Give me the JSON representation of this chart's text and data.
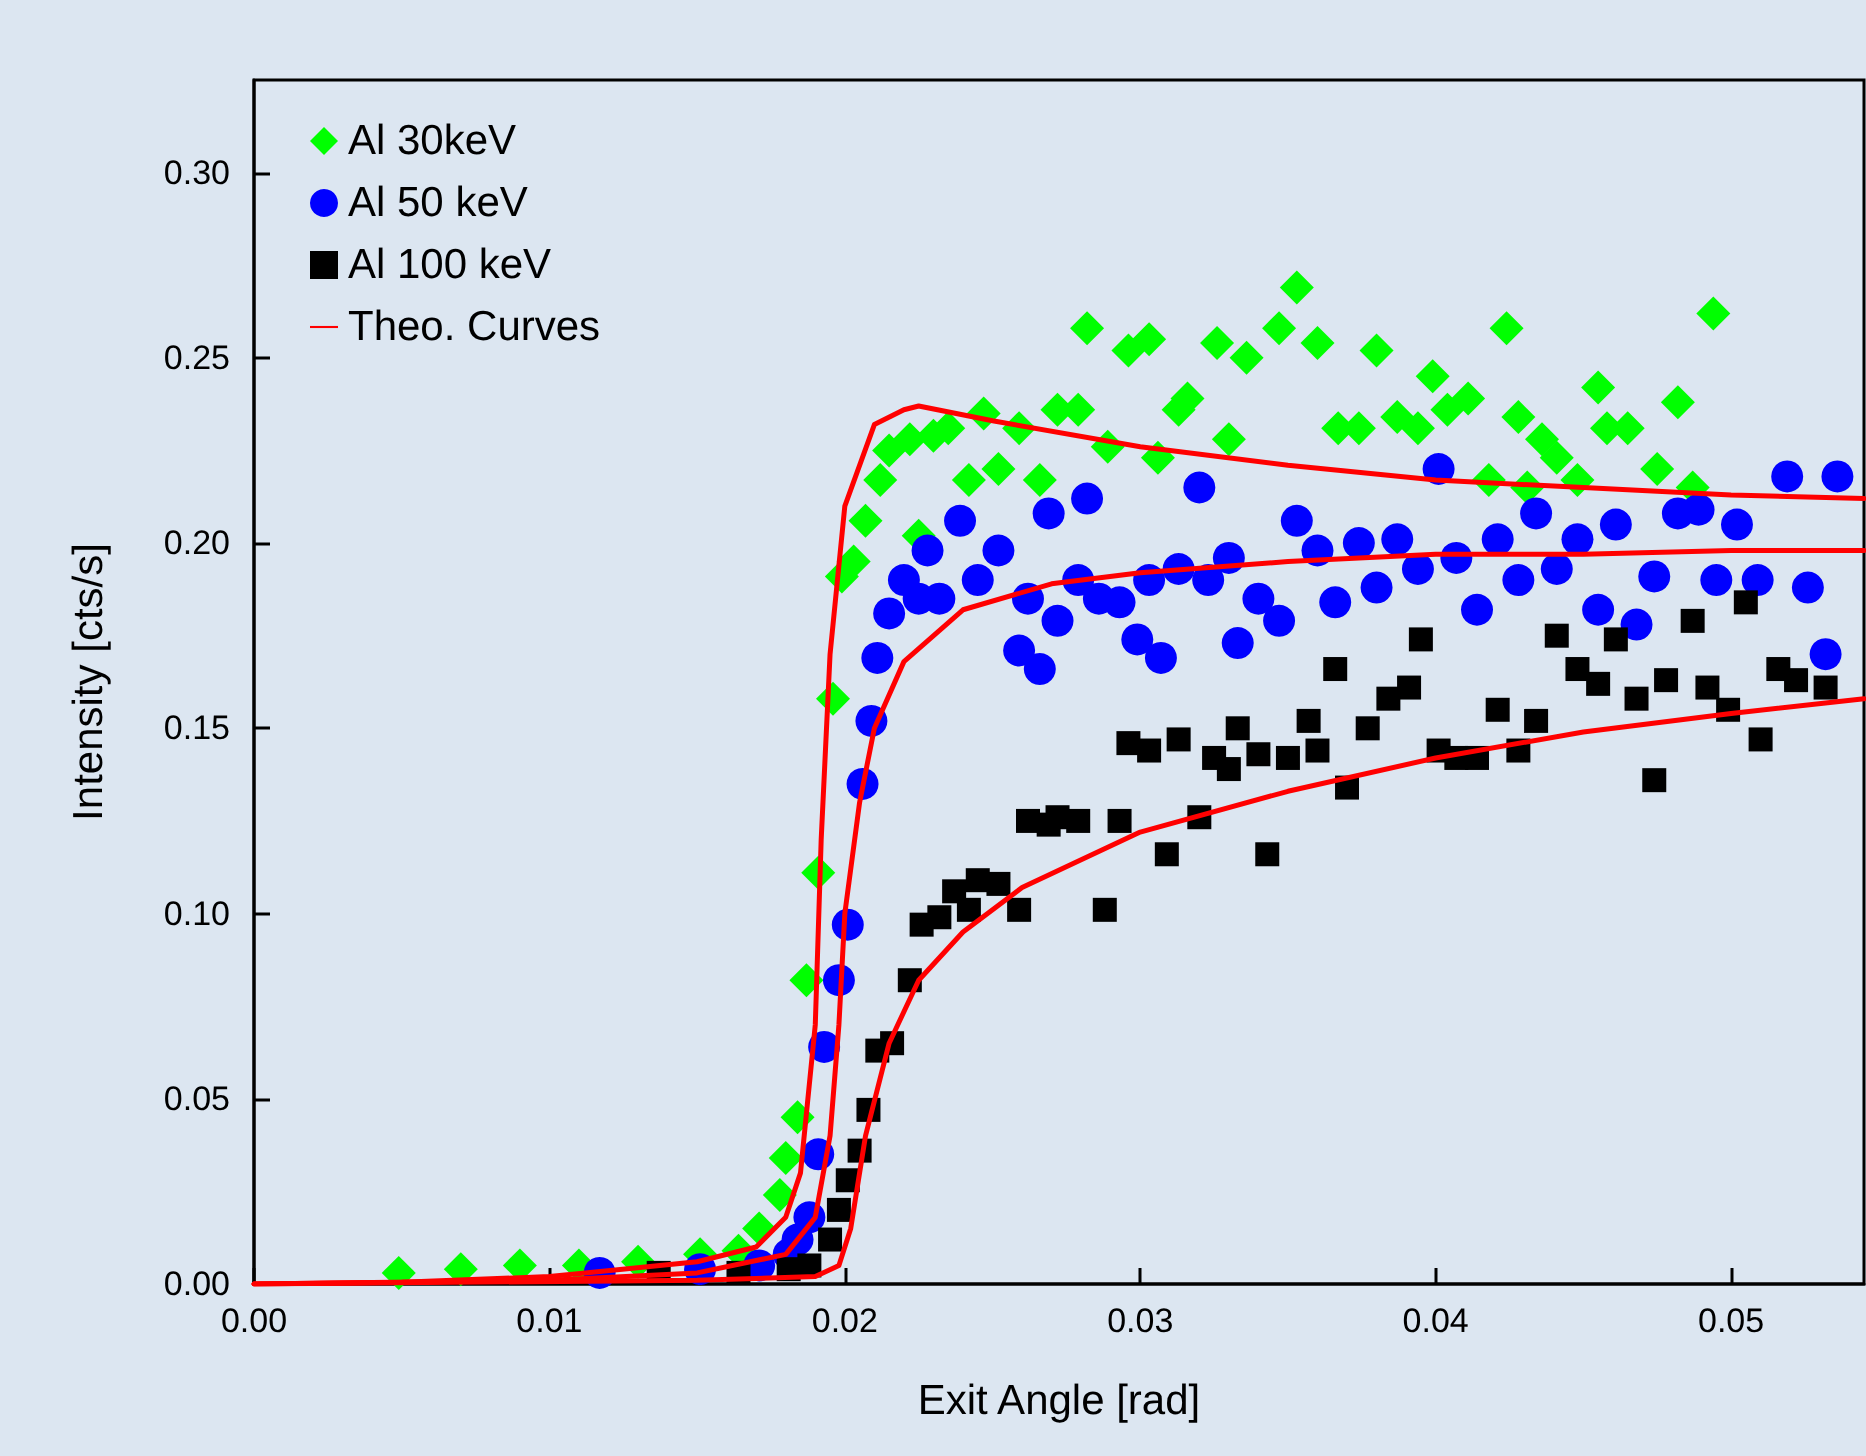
{
  "chart_data": {
    "type": "scatter",
    "xlabel": "Exit Angle [rad]",
    "ylabel": "Intensity [cts/s]",
    "xlim": [
      0,
      0.0545
    ],
    "ylim": [
      0,
      0.325
    ],
    "xticks": [
      {
        "value": 0,
        "label": "0.00"
      },
      {
        "value": 0.01,
        "label": "0.01"
      },
      {
        "value": 0.02,
        "label": "0.02"
      },
      {
        "value": 0.03,
        "label": "0.03"
      },
      {
        "value": 0.04,
        "label": "0.04"
      },
      {
        "value": 0.05,
        "label": "0.05"
      }
    ],
    "yticks": [
      {
        "value": 0,
        "label": "0.00"
      },
      {
        "value": 0.05,
        "label": "0.05"
      },
      {
        "value": 0.1,
        "label": "0.10"
      },
      {
        "value": 0.15,
        "label": "0.15"
      },
      {
        "value": 0.2,
        "label": "0.20"
      },
      {
        "value": 0.25,
        "label": "0.25"
      },
      {
        "value": 0.3,
        "label": "0.30"
      }
    ],
    "grid": false,
    "legend": "top left",
    "series": [
      {
        "name": "Al 30keV",
        "marker": "diamond",
        "color": "#00ff00",
        "x": [
          0.0049,
          0.007,
          0.009,
          0.011,
          0.013,
          0.0151,
          0.0164,
          0.0171,
          0.0178,
          0.018,
          0.0184,
          0.0187,
          0.0191,
          0.0196,
          0.0199,
          0.0203,
          0.0207,
          0.0212,
          0.0215,
          0.0222,
          0.0225,
          0.023,
          0.0235,
          0.0242,
          0.0247,
          0.0252,
          0.0259,
          0.0266,
          0.0272,
          0.0279,
          0.0282,
          0.0289,
          0.0296,
          0.0303,
          0.0306,
          0.0313,
          0.0316,
          0.0326,
          0.033,
          0.0336,
          0.0347,
          0.0353,
          0.036,
          0.0367,
          0.0374,
          0.038,
          0.0387,
          0.0394,
          0.0399,
          0.0404,
          0.0411,
          0.0418,
          0.0424,
          0.0428,
          0.0431,
          0.0436,
          0.0441,
          0.0448,
          0.0455,
          0.0458,
          0.0465,
          0.0475,
          0.0482,
          0.0487,
          0.0494
        ],
        "values": [
          0.003,
          0.004,
          0.005,
          0.005,
          0.006,
          0.008,
          0.009,
          0.015,
          0.024,
          0.034,
          0.045,
          0.082,
          0.111,
          0.158,
          0.191,
          0.195,
          0.206,
          0.217,
          0.225,
          0.228,
          0.202,
          0.229,
          0.231,
          0.217,
          0.235,
          0.22,
          0.231,
          0.217,
          0.236,
          0.236,
          0.258,
          0.226,
          0.252,
          0.255,
          0.223,
          0.236,
          0.239,
          0.254,
          0.228,
          0.25,
          0.258,
          0.269,
          0.254,
          0.231,
          0.231,
          0.252,
          0.234,
          0.231,
          0.245,
          0.236,
          0.239,
          0.217,
          0.258,
          0.234,
          0.215,
          0.228,
          0.223,
          0.217,
          0.242,
          0.231,
          0.231,
          0.22,
          0.238,
          0.215,
          0.262
        ]
      },
      {
        "name": "Al 50 keV",
        "marker": "circle",
        "color": "#0000ff",
        "x": [
          0.0117,
          0.0151,
          0.0171,
          0.0181,
          0.0184,
          0.0188,
          0.0191,
          0.0193,
          0.0198,
          0.0201,
          0.0206,
          0.0209,
          0.0211,
          0.0215,
          0.022,
          0.0225,
          0.0228,
          0.0232,
          0.0239,
          0.0245,
          0.0252,
          0.0259,
          0.0262,
          0.0266,
          0.0269,
          0.0272,
          0.0279,
          0.0282,
          0.0286,
          0.0293,
          0.0299,
          0.0303,
          0.0307,
          0.0313,
          0.032,
          0.0323,
          0.033,
          0.0333,
          0.034,
          0.0347,
          0.0353,
          0.036,
          0.0366,
          0.0374,
          0.038,
          0.0387,
          0.0394,
          0.0401,
          0.0407,
          0.0414,
          0.0421,
          0.0428,
          0.0434,
          0.0441,
          0.0448,
          0.0455,
          0.0461,
          0.0468,
          0.0474,
          0.0482,
          0.0489,
          0.0495,
          0.0502,
          0.0509,
          0.0519,
          0.0526,
          0.0532,
          0.0536
        ],
        "values": [
          0.003,
          0.004,
          0.005,
          0.008,
          0.012,
          0.018,
          0.035,
          0.064,
          0.082,
          0.097,
          0.135,
          0.152,
          0.169,
          0.181,
          0.19,
          0.185,
          0.198,
          0.185,
          0.206,
          0.19,
          0.198,
          0.171,
          0.185,
          0.166,
          0.208,
          0.179,
          0.19,
          0.212,
          0.185,
          0.184,
          0.174,
          0.19,
          0.169,
          0.193,
          0.215,
          0.19,
          0.196,
          0.173,
          0.185,
          0.179,
          0.206,
          0.198,
          0.184,
          0.2,
          0.188,
          0.201,
          0.193,
          0.22,
          0.196,
          0.182,
          0.201,
          0.19,
          0.208,
          0.193,
          0.201,
          0.182,
          0.205,
          0.178,
          0.191,
          0.208,
          0.209,
          0.19,
          0.205,
          0.19,
          0.218,
          0.188,
          0.17,
          0.218
        ]
      },
      {
        "name": "Al 100 keV",
        "marker": "square",
        "color": "#000000",
        "x": [
          0.0137,
          0.0164,
          0.0181,
          0.0188,
          0.0195,
          0.0198,
          0.0201,
          0.0205,
          0.0208,
          0.0211,
          0.0216,
          0.0222,
          0.0226,
          0.0232,
          0.0237,
          0.0242,
          0.0245,
          0.0252,
          0.0259,
          0.0262,
          0.0269,
          0.0272,
          0.0279,
          0.0288,
          0.0293,
          0.0296,
          0.0303,
          0.0309,
          0.0313,
          0.032,
          0.0325,
          0.033,
          0.0333,
          0.034,
          0.0343,
          0.035,
          0.0357,
          0.036,
          0.0366,
          0.037,
          0.0377,
          0.0384,
          0.0391,
          0.0395,
          0.0401,
          0.0407,
          0.0414,
          0.0421,
          0.0428,
          0.0434,
          0.0441,
          0.0448,
          0.0455,
          0.0461,
          0.0468,
          0.0474,
          0.0478,
          0.0487,
          0.0492,
          0.0499,
          0.0505,
          0.051,
          0.0516,
          0.0522,
          0.0532
        ],
        "values": [
          0.003,
          0.003,
          0.004,
          0.005,
          0.012,
          0.02,
          0.028,
          0.036,
          0.047,
          0.063,
          0.065,
          0.082,
          0.097,
          0.099,
          0.106,
          0.101,
          0.109,
          0.108,
          0.101,
          0.125,
          0.124,
          0.126,
          0.125,
          0.101,
          0.125,
          0.146,
          0.144,
          0.116,
          0.147,
          0.126,
          0.142,
          0.139,
          0.15,
          0.143,
          0.116,
          0.142,
          0.152,
          0.144,
          0.166,
          0.134,
          0.15,
          0.158,
          0.161,
          0.174,
          0.144,
          0.142,
          0.142,
          0.155,
          0.144,
          0.152,
          0.175,
          0.166,
          0.162,
          0.174,
          0.158,
          0.136,
          0.163,
          0.179,
          0.161,
          0.155,
          0.184,
          0.147,
          0.166,
          0.163,
          0.161
        ]
      },
      {
        "name": "Theo. Curves",
        "type": "line",
        "marker": "none",
        "line_style": "solid",
        "color": "#ff0000",
        "x": [
          0,
          0.005,
          0.01,
          0.015,
          0.017,
          0.018,
          0.0185,
          0.019,
          0.0192,
          0.0195,
          0.02,
          0.021,
          0.022,
          0.0225,
          0.025,
          0.03,
          0.035,
          0.04,
          0.045,
          0.05,
          0.0545
        ],
        "values": [
          0,
          0.0005,
          0.002,
          0.006,
          0.01,
          0.018,
          0.03,
          0.07,
          0.12,
          0.17,
          0.21,
          0.232,
          0.236,
          0.237,
          0.233,
          0.226,
          0.221,
          0.217,
          0.215,
          0.213,
          0.212
        ]
      },
      {
        "type": "line",
        "marker": "none",
        "line_style": "solid",
        "color": "#ff0000",
        "x": [
          0,
          0.01,
          0.015,
          0.018,
          0.019,
          0.0195,
          0.0198,
          0.02,
          0.0205,
          0.021,
          0.022,
          0.024,
          0.027,
          0.03,
          0.035,
          0.04,
          0.045,
          0.05,
          0.0545
        ],
        "values": [
          0,
          0.001,
          0.003,
          0.008,
          0.018,
          0.04,
          0.07,
          0.1,
          0.13,
          0.15,
          0.168,
          0.182,
          0.189,
          0.192,
          0.195,
          0.197,
          0.197,
          0.198,
          0.198
        ]
      },
      {
        "type": "line",
        "marker": "none",
        "line_style": "solid",
        "color": "#ff0000",
        "x": [
          0,
          0.015,
          0.019,
          0.0198,
          0.0202,
          0.0207,
          0.0215,
          0.0225,
          0.024,
          0.026,
          0.03,
          0.035,
          0.04,
          0.045,
          0.05,
          0.0545
        ],
        "values": [
          0,
          0.001,
          0.002,
          0.005,
          0.015,
          0.04,
          0.065,
          0.082,
          0.095,
          0.107,
          0.122,
          0.133,
          0.142,
          0.149,
          0.154,
          0.158
        ]
      }
    ]
  }
}
